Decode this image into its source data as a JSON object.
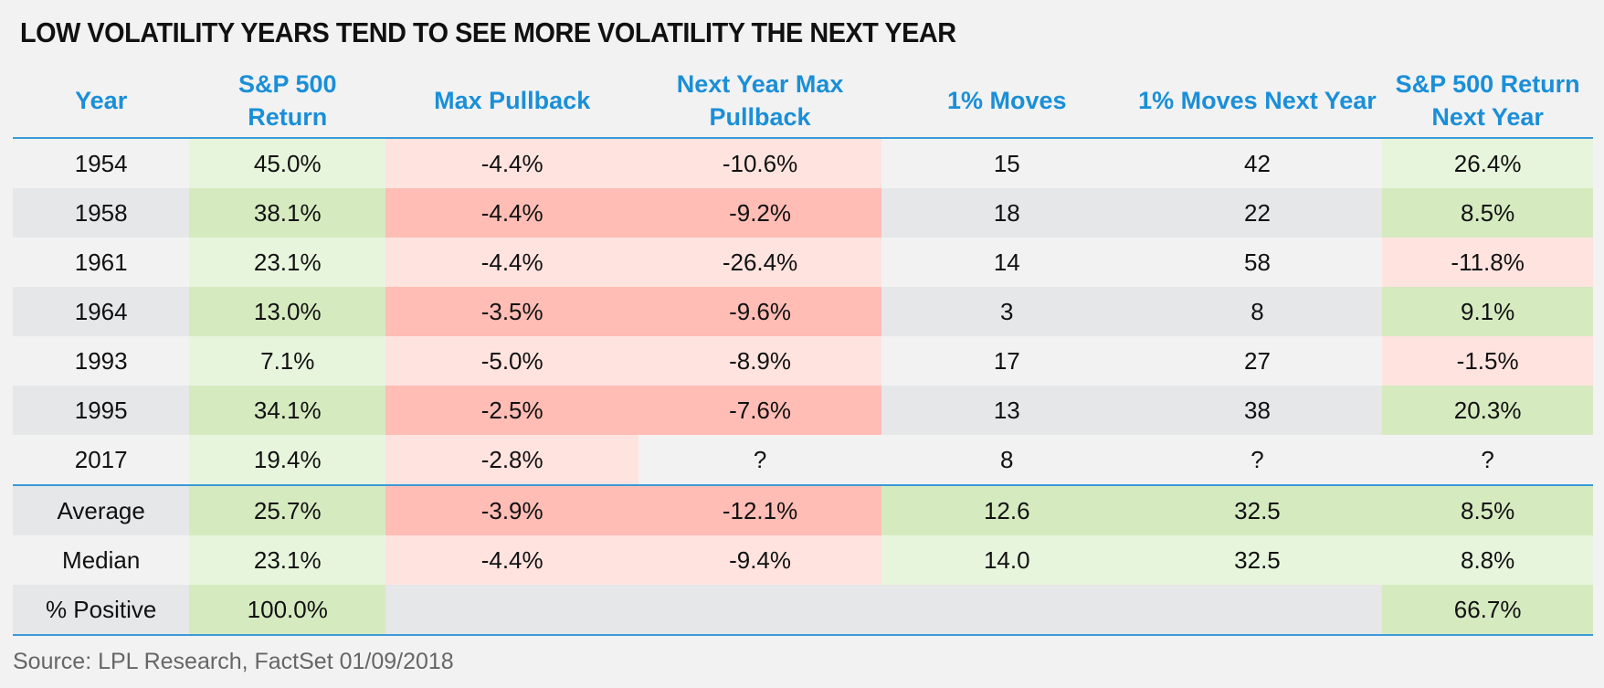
{
  "title": "LOW VOLATILITY YEARS TEND TO SEE MORE VOLATILITY THE NEXT YEAR",
  "source": "Source: LPL Research, FactSet 01/09/2018",
  "colors": {
    "header_text": "#1a8fd8",
    "rule": "#3a9bd8",
    "light_green": "#e8f5dd",
    "green": "#d6eac0",
    "light_red": "#ffe3df",
    "red": "#ffbdb5",
    "light_gray": "#f2f2f2",
    "gray": "#e6e7e9"
  },
  "chart_data": {
    "type": "table",
    "title": "LOW VOLATILITY YEARS TEND TO SEE MORE VOLATILITY THE NEXT YEAR",
    "columns": [
      "Year",
      "S&P 500 Return",
      "Max Pullback",
      "Next Year Max Pullback",
      "1% Moves",
      "1% Moves Next Year",
      "S&P 500 Return Next Year"
    ],
    "rows": [
      {
        "cells": [
          "1954",
          "45.0%",
          "-4.4%",
          "-10.6%",
          "15",
          "42",
          "26.4%"
        ],
        "fills": [
          "lg",
          "lgr",
          "lrd",
          "lrd",
          "lg",
          "lg",
          "lgr"
        ]
      },
      {
        "cells": [
          "1958",
          "38.1%",
          "-4.4%",
          "-9.2%",
          "18",
          "22",
          "8.5%"
        ],
        "fills": [
          "gy",
          "gr",
          "rd",
          "rd",
          "gy",
          "gy",
          "gr"
        ]
      },
      {
        "cells": [
          "1961",
          "23.1%",
          "-4.4%",
          "-26.4%",
          "14",
          "58",
          "-11.8%"
        ],
        "fills": [
          "lg",
          "lgr",
          "lrd",
          "lrd",
          "lg",
          "lg",
          "lrd"
        ]
      },
      {
        "cells": [
          "1964",
          "13.0%",
          "-3.5%",
          "-9.6%",
          "3",
          "8",
          "9.1%"
        ],
        "fills": [
          "gy",
          "gr",
          "rd",
          "rd",
          "gy",
          "gy",
          "gr"
        ]
      },
      {
        "cells": [
          "1993",
          "7.1%",
          "-5.0%",
          "-8.9%",
          "17",
          "27",
          "-1.5%"
        ],
        "fills": [
          "lg",
          "lgr",
          "lrd",
          "lrd",
          "lg",
          "lg",
          "lrd"
        ]
      },
      {
        "cells": [
          "1995",
          "34.1%",
          "-2.5%",
          "-7.6%",
          "13",
          "38",
          "20.3%"
        ],
        "fills": [
          "gy",
          "gr",
          "rd",
          "rd",
          "gy",
          "gy",
          "gr"
        ]
      },
      {
        "cells": [
          "2017",
          "19.4%",
          "-2.8%",
          "?",
          "8",
          "?",
          "?"
        ],
        "fills": [
          "lg",
          "lgr",
          "lrd",
          "lg",
          "lg",
          "lg",
          "lg"
        ]
      }
    ],
    "summary": [
      {
        "cells": [
          "Average",
          "25.7%",
          "-3.9%",
          "-12.1%",
          "12.6",
          "32.5",
          "8.5%"
        ],
        "fills": [
          "gy",
          "gr",
          "rd",
          "rd",
          "gr",
          "gr",
          "gr"
        ]
      },
      {
        "cells": [
          "Median",
          "23.1%",
          "-4.4%",
          "-9.4%",
          "14.0",
          "32.5",
          "8.8%"
        ],
        "fills": [
          "lg",
          "lgr",
          "lrd",
          "lrd",
          "lgr",
          "lgr",
          "lgr"
        ]
      },
      {
        "cells": [
          "% Positive",
          "100.0%",
          "",
          "",
          "",
          "",
          "66.7%"
        ],
        "fills": [
          "gy",
          "gr",
          "gy",
          "gy",
          "gy",
          "gy",
          "gr"
        ]
      }
    ]
  }
}
